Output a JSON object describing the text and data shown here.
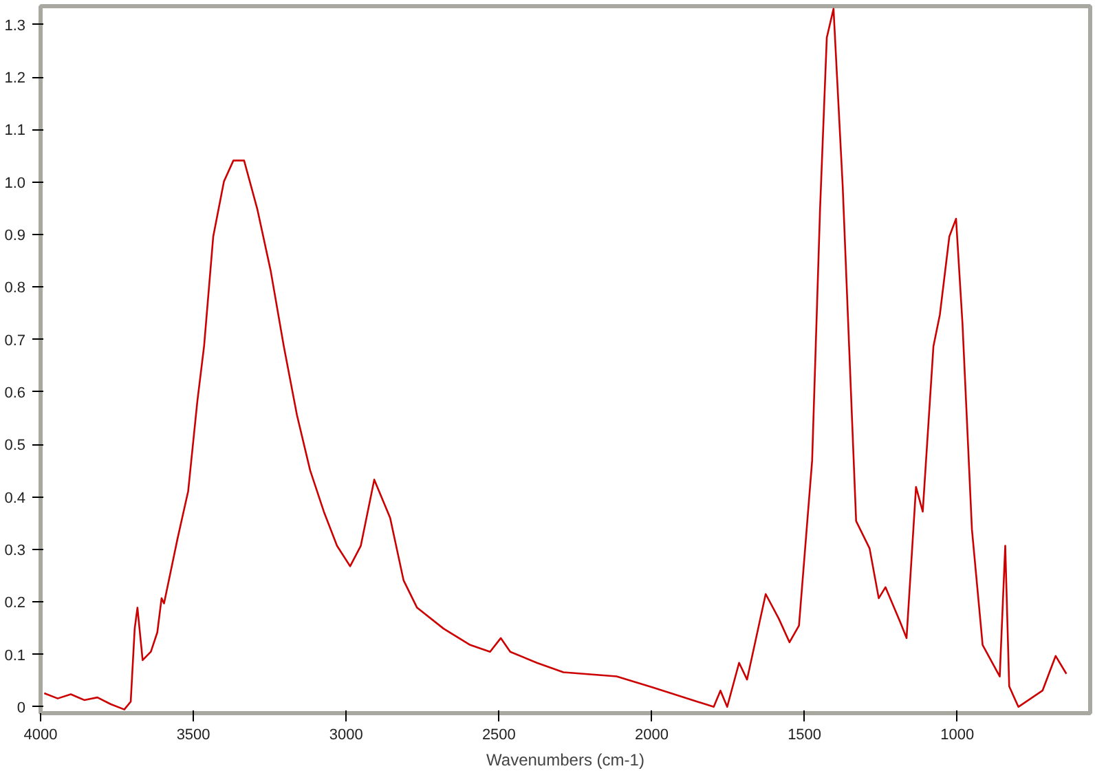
{
  "chart_data": {
    "type": "line",
    "xlabel": "Wavenumbers (cm-1)",
    "x": [
      3988,
      3944,
      3901,
      3857,
      3814,
      3770,
      3726,
      3705,
      3692,
      3683,
      3666,
      3639,
      3618,
      3604,
      3596,
      3552,
      3517,
      3487,
      3465,
      3435,
      3400,
      3369,
      3334,
      3291,
      3247,
      3204,
      3161,
      3118,
      3073,
      3030,
      2987,
      2952,
      2908,
      2856,
      2812,
      2768,
      2681,
      2594,
      2529,
      2494,
      2463,
      2376,
      2289,
      2115,
      1997,
      1797,
      1775,
      1753,
      1714,
      1688,
      1627,
      1584,
      1549,
      1518,
      1475,
      1449,
      1427,
      1405,
      1375,
      1331,
      1287,
      1257,
      1235,
      1187,
      1166,
      1135,
      1113,
      1078,
      1057,
      1026,
      1004,
      983,
      952,
      917,
      861,
      843,
      830,
      800,
      721,
      678,
      643
    ],
    "series": [
      {
        "color": "#cc0000",
        "values": [
          0.026,
          0.016,
          0.024,
          0.013,
          0.018,
          0.005,
          -0.005,
          0.01,
          0.149,
          0.189,
          0.089,
          0.105,
          0.142,
          0.207,
          0.197,
          0.32,
          0.411,
          0.582,
          0.687,
          0.896,
          1.001,
          1.041,
          1.041,
          0.949,
          0.831,
          0.687,
          0.556,
          0.451,
          0.372,
          0.307,
          0.268,
          0.307,
          0.433,
          0.36,
          0.241,
          0.189,
          0.149,
          0.118,
          0.105,
          0.131,
          0.105,
          0.084,
          0.066,
          0.058,
          0.037,
          0.0,
          0.031,
          0.0,
          0.084,
          0.052,
          0.215,
          0.168,
          0.123,
          0.155,
          0.469,
          0.949,
          1.275,
          1.33,
          0.993,
          0.354,
          0.302,
          0.207,
          0.228,
          0.162,
          0.131,
          0.419,
          0.372,
          0.687,
          0.747,
          0.896,
          0.93,
          0.731,
          0.338,
          0.118,
          0.058,
          0.307,
          0.039,
          0.0,
          0.031,
          0.097,
          0.063
        ]
      }
    ],
    "xlim": [
      4000,
      565
    ],
    "ylim": [
      -0.012,
      1.335
    ],
    "xticks": [
      4000,
      3500,
      3000,
      2500,
      2000,
      1500,
      1000
    ],
    "yticks": [
      0,
      0.1,
      0.2,
      0.3,
      0.4,
      0.5,
      0.6,
      0.7,
      0.8,
      0.9,
      {
        "value": 1.0,
        "label": "1.0"
      },
      1.1,
      1.2,
      1.3
    ],
    "grid": false
  }
}
